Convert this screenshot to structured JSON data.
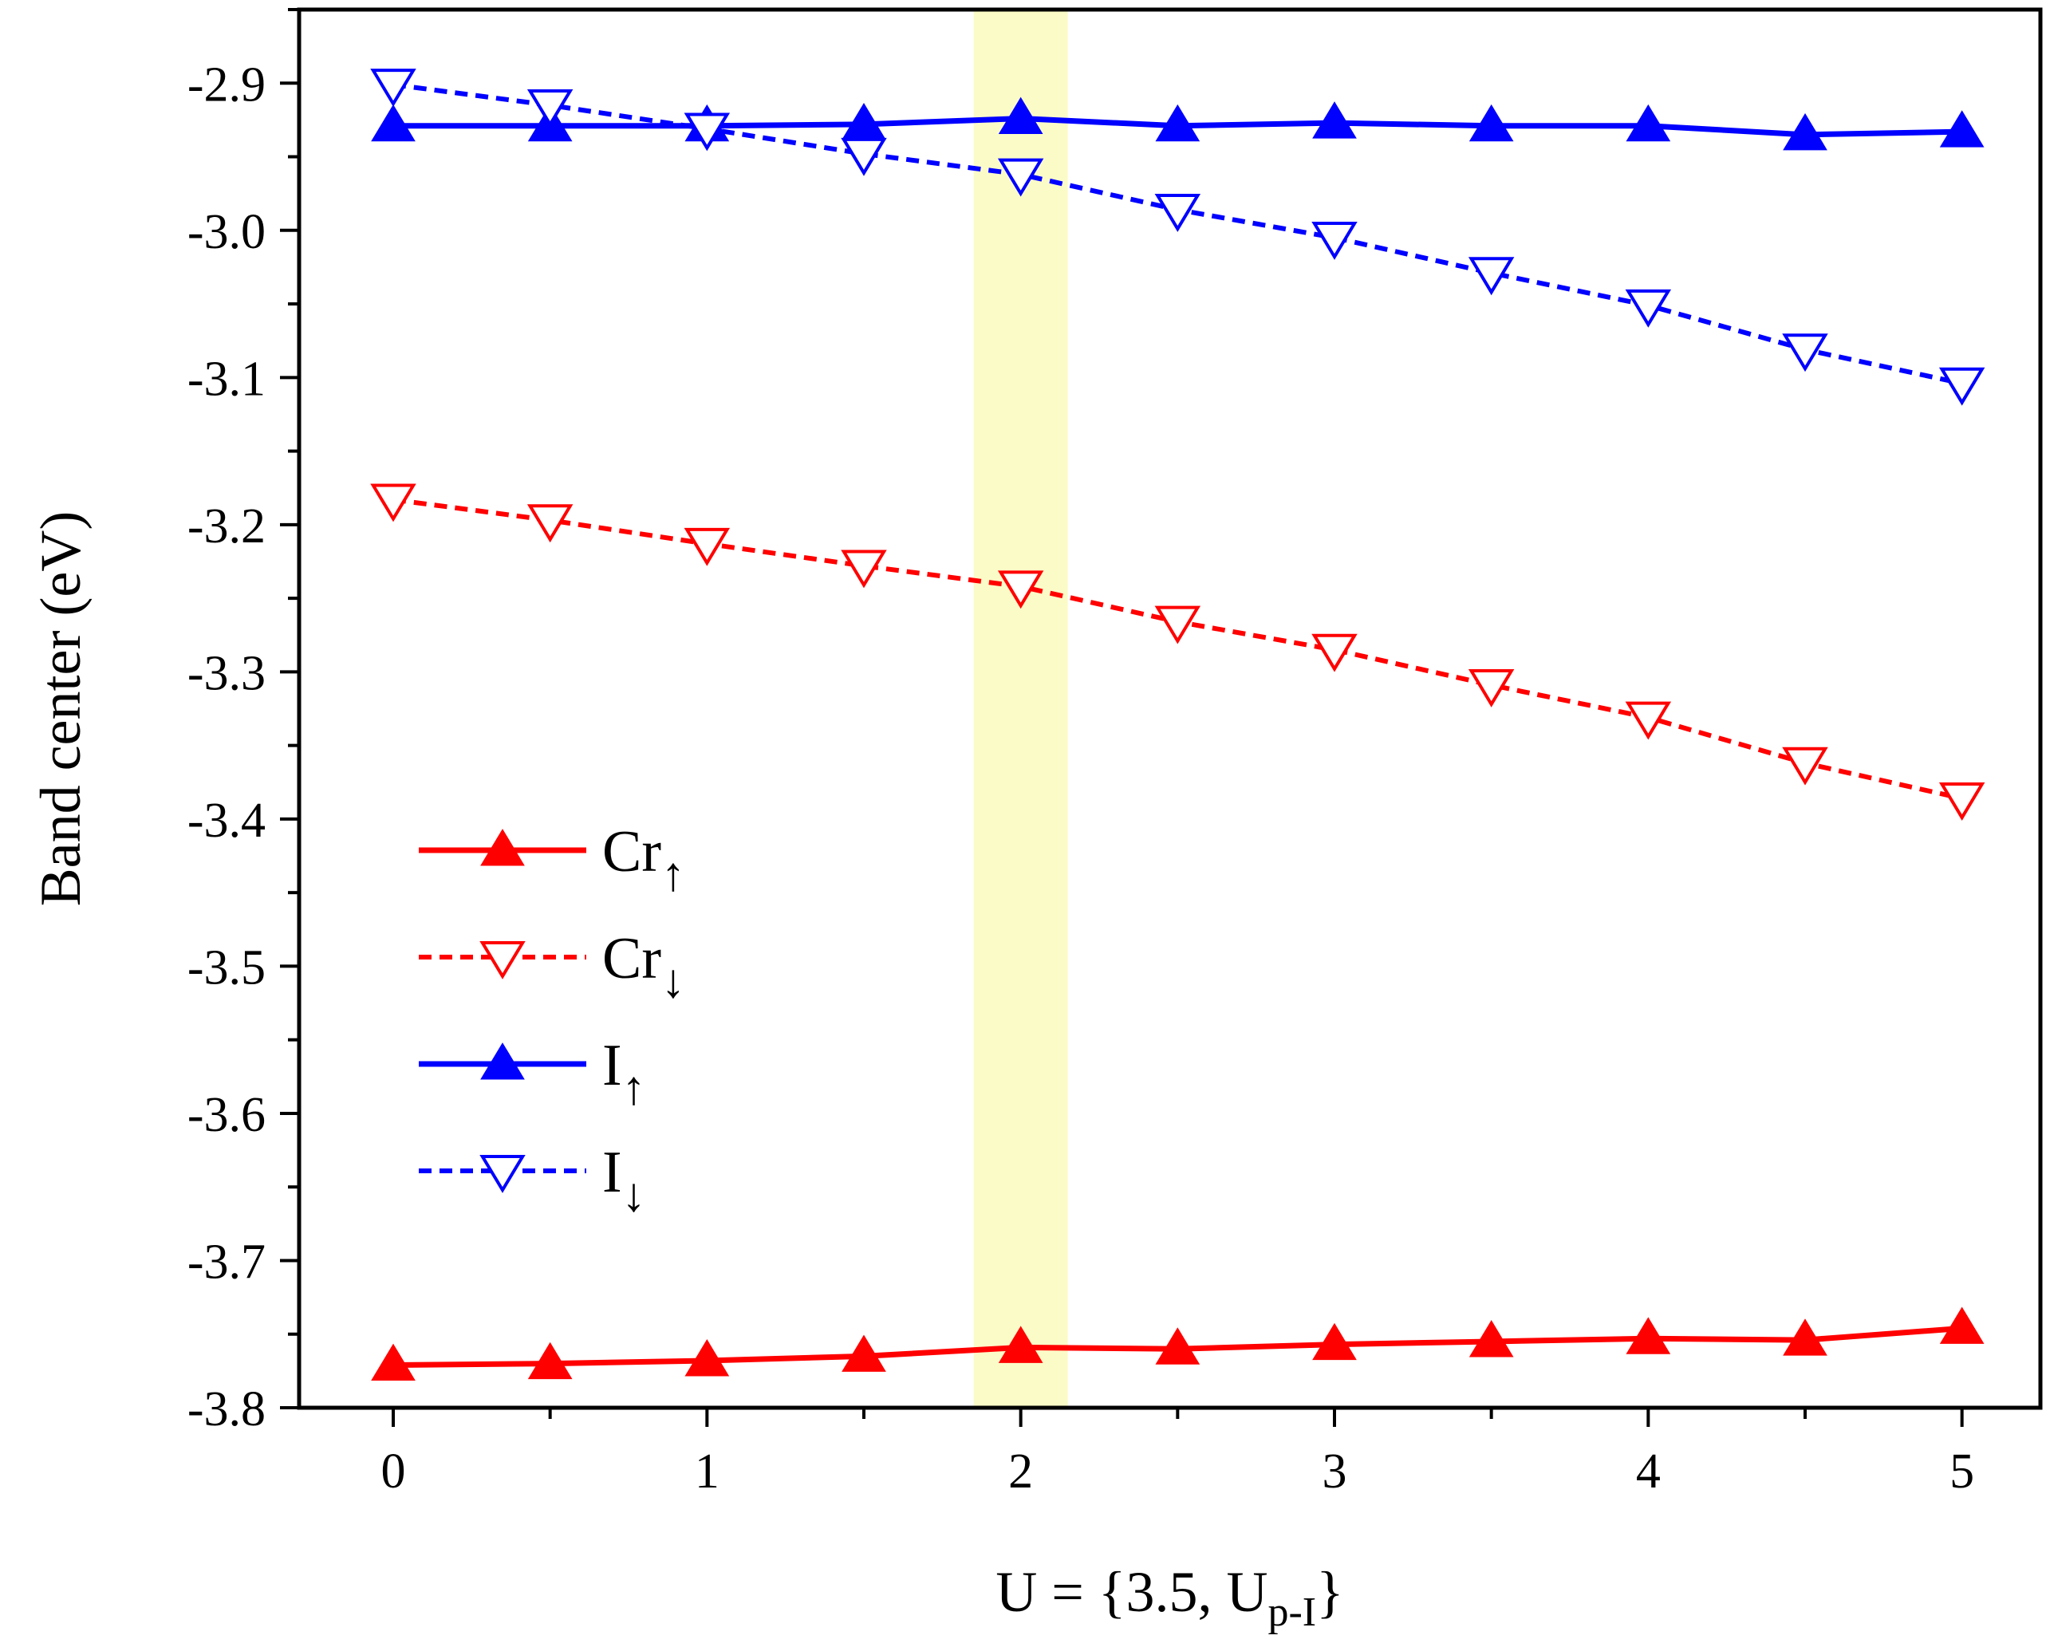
{
  "chart_data": {
    "type": "line",
    "xlabel": "U = {3.5, U",
    "xlabel_sub": "p-I",
    "xlabel_close": "}",
    "ylabel": "Band center (eV)",
    "xlim": [
      -0.3,
      5.25
    ],
    "ylim": [
      -3.8,
      -2.85
    ],
    "x_ticks": [
      0,
      1,
      2,
      3,
      4,
      5
    ],
    "x_tick_labels": [
      "0",
      "1",
      "2",
      "3",
      "4",
      "5"
    ],
    "y_ticks": [
      -2.9,
      -3.0,
      -3.1,
      -3.2,
      -3.3,
      -3.4,
      -3.5,
      -3.6,
      -3.7,
      -3.8
    ],
    "y_tick_labels": [
      "-2.9",
      "-3.0",
      "-3.1",
      "-3.2",
      "-3.3",
      "-3.4",
      "-3.5",
      "-3.6",
      "-3.7",
      "-3.8"
    ],
    "highlight_band": {
      "from": 1.85,
      "to": 2.15,
      "color": "#fbfbc8"
    },
    "x": [
      0,
      0.5,
      1,
      1.5,
      2,
      2.5,
      3,
      3.5,
      4,
      4.5,
      5
    ],
    "series": [
      {
        "name": "Cr",
        "arrow": "↑",
        "color": "#ff0000",
        "dash": false,
        "marker": "triangle-up-filled",
        "values": [
          -3.771,
          -3.77,
          -3.768,
          -3.765,
          -3.759,
          -3.76,
          -3.757,
          -3.755,
          -3.753,
          -3.754,
          -3.746
        ]
      },
      {
        "name": "Cr",
        "arrow": "↓",
        "color": "#ff0000",
        "dash": true,
        "marker": "triangle-down-open",
        "values": [
          -3.183,
          -3.197,
          -3.213,
          -3.228,
          -3.242,
          -3.266,
          -3.285,
          -3.309,
          -3.331,
          -3.362,
          -3.386
        ]
      },
      {
        "name": "I",
        "arrow": "↑",
        "color": "#0000ff",
        "dash": false,
        "marker": "triangle-up-filled",
        "values": [
          -2.929,
          -2.929,
          -2.929,
          -2.928,
          -2.924,
          -2.929,
          -2.927,
          -2.929,
          -2.929,
          -2.935,
          -2.933
        ]
      },
      {
        "name": "I",
        "arrow": "↓",
        "color": "#0000ff",
        "dash": true,
        "marker": "triangle-down-open",
        "values": [
          -2.901,
          -2.915,
          -2.931,
          -2.948,
          -2.962,
          -2.986,
          -3.005,
          -3.029,
          -3.051,
          -3.081,
          -3.104
        ]
      }
    ],
    "legend_position": "lower-left"
  }
}
